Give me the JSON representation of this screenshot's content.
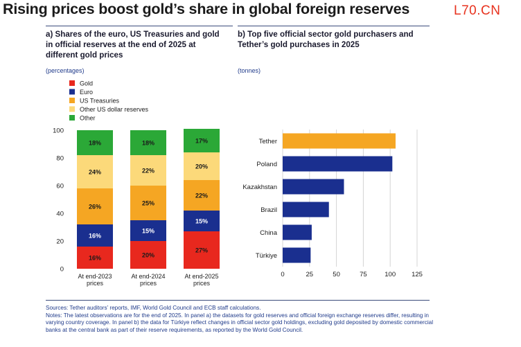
{
  "title": "Rising prices boost gold’s share in global foreign reserves",
  "watermark": "L70.CN",
  "panel_a": {
    "title_lines": [
      "a) Shares of the euro, US Treasuries and gold",
      "in official reserves at the end of 2025 at",
      "different gold prices"
    ],
    "unit": "(percentages)"
  },
  "panel_b": {
    "title_lines": [
      "b) Top five official sector gold purchasers and",
      "Tether’s gold purchases in 2025"
    ],
    "unit": "(tonnes)"
  },
  "footnotes": {
    "sources": "Sources: Tether auditors’ reports, IMF, World Gold Council and ECB staff calculations.",
    "notes": "Notes: The latest observations are for the end of 2025. In panel a) the datasets for gold reserves and official foreign exchange reserves differ, resulting in varying country coverage. In panel b) the data for Türkiye reflect changes in official sector gold holdings, excluding gold deposited by domestic commercial banks at the central bank as part of their reserve requirements, as reported by the World Gold Council."
  },
  "colors": {
    "gold": "#e8281e",
    "euro": "#1a2f8f",
    "treasuries": "#f5a623",
    "other_usd": "#fcd97a",
    "other": "#2ba837",
    "tether": "#f5a623",
    "bars_b": "#1a2f8f"
  },
  "chart_data": [
    {
      "type": "bar",
      "stacked": true,
      "categories": [
        [
          "At end-2023",
          "prices"
        ],
        [
          "At end-2024",
          "prices"
        ],
        [
          "At end-2025",
          "prices"
        ]
      ],
      "series": [
        {
          "name": "Gold",
          "values": [
            16,
            20,
            27
          ],
          "labels": [
            "16%",
            "20%",
            "27%"
          ]
        },
        {
          "name": "Euro",
          "values": [
            16,
            15,
            15
          ],
          "labels": [
            "16%",
            "15%",
            "15%"
          ]
        },
        {
          "name": "US Treasuries",
          "values": [
            26,
            25,
            22
          ],
          "labels": [
            "26%",
            "25%",
            "22%"
          ]
        },
        {
          "name": "Other US dollar reserves",
          "values": [
            24,
            22,
            20
          ],
          "labels": [
            "24%",
            "22%",
            "20%"
          ]
        },
        {
          "name": "Other",
          "values": [
            18,
            18,
            17
          ],
          "labels": [
            "18%",
            "18%",
            "17%"
          ]
        }
      ],
      "ylim": [
        0,
        100
      ],
      "yticks": [
        "0",
        "20",
        "40",
        "60",
        "80",
        "100"
      ],
      "legend": "top-left"
    },
    {
      "type": "bar",
      "orientation": "horizontal",
      "categories": [
        "Tether",
        "Poland",
        "Kazakhstan",
        "Brazil",
        "China",
        "Türkiye"
      ],
      "values": [
        105,
        102,
        57,
        43,
        27,
        26
      ],
      "xlim": [
        0,
        125
      ],
      "xticks": [
        "0",
        "25",
        "50",
        "75",
        "100",
        "125"
      ],
      "grid": true
    }
  ]
}
